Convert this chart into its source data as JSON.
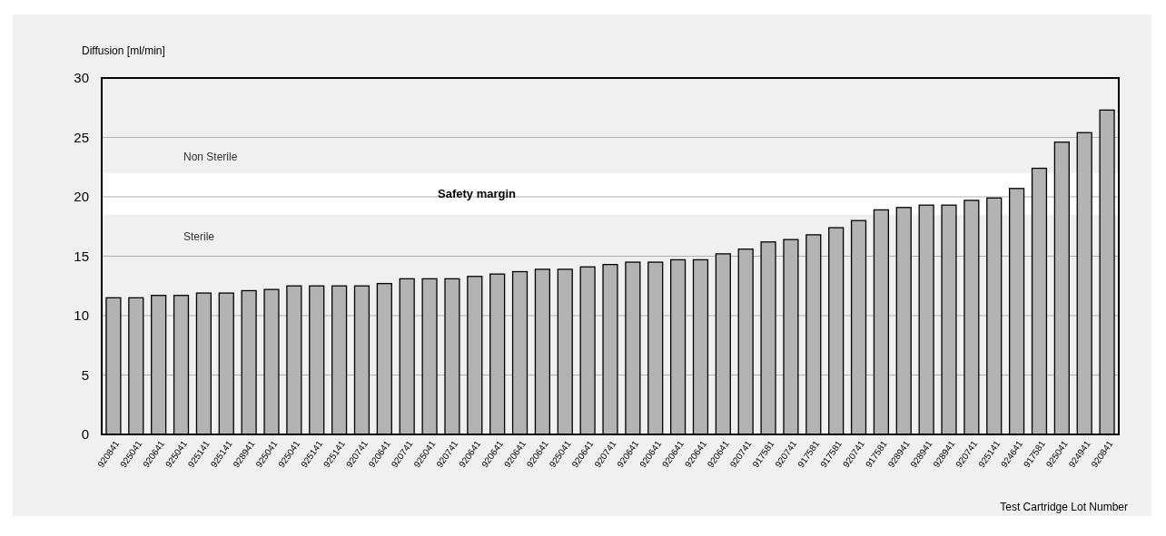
{
  "chart_data": {
    "type": "bar",
    "ylabel": "Diffusion [ml/min]",
    "xlabel": "Test Cartridge Lot Number",
    "categories": [
      "920841",
      "925041",
      "920641",
      "925041",
      "925141",
      "925141",
      "928941",
      "925041",
      "925041",
      "925141",
      "925141",
      "920741",
      "920641",
      "920741",
      "925041",
      "920741",
      "920641",
      "920641",
      "920641",
      "920641",
      "925041",
      "920641",
      "920741",
      "920641",
      "920641",
      "920641",
      "920641",
      "920641",
      "920741",
      "917581",
      "920741",
      "917581",
      "917581",
      "920741",
      "917581",
      "928941",
      "928941",
      "928941",
      "920741",
      "925141",
      "924641",
      "917581",
      "925041",
      "924941",
      "920841"
    ],
    "values": [
      11.5,
      11.5,
      11.7,
      11.7,
      11.9,
      11.9,
      12.1,
      12.2,
      12.5,
      12.5,
      12.5,
      12.5,
      12.7,
      13.1,
      13.1,
      13.1,
      13.3,
      13.5,
      13.7,
      13.9,
      13.9,
      14.1,
      14.3,
      14.5,
      14.5,
      14.7,
      14.7,
      15.2,
      15.6,
      16.2,
      16.4,
      16.8,
      17.4,
      18.0,
      18.9,
      19.1,
      19.3,
      19.3,
      19.7,
      19.9,
      20.7,
      22.4,
      24.6,
      25.4,
      27.3
    ],
    "color": "#b3b3b3",
    "ylim": [
      0,
      30
    ],
    "yticks": [
      0,
      5,
      10,
      15,
      20,
      25,
      30
    ],
    "grid": "y",
    "bands": [
      {
        "axis": "y",
        "from": 18.5,
        "to": 22,
        "label": "Safety margin",
        "color": "#ffffff"
      }
    ],
    "annotations": [
      "Non Sterile",
      "Sterile"
    ]
  }
}
